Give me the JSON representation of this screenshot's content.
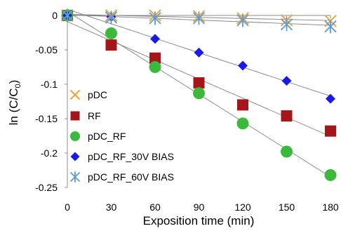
{
  "chart_data": {
    "type": "scatter",
    "title": "",
    "xlabel": "Exposition time (min)",
    "ylabel": {
      "main": "ln (C/C",
      "sub": "0",
      "close": ")"
    },
    "xlim": [
      0,
      180
    ],
    "ylim": [
      -0.25,
      0
    ],
    "x_ticks": [
      0,
      30,
      60,
      90,
      120,
      150,
      180
    ],
    "y_ticks": [
      0,
      -0.05,
      -0.1,
      -0.15,
      -0.2,
      -0.25
    ],
    "y_tick_labels": [
      "0",
      "-0.05",
      "-0.1",
      "-0.15",
      "-0.2",
      "-0.25"
    ],
    "grid": false,
    "trendlines": true,
    "legend_position": "bottom-left",
    "series": [
      {
        "name": "pDC",
        "marker": "x-cross",
        "color": "#F4A23A",
        "x": [
          0,
          30,
          60,
          90,
          120,
          150,
          180
        ],
        "y": [
          0,
          0,
          0,
          -0.001,
          -0.004,
          -0.007,
          -0.008
        ]
      },
      {
        "name": "RF",
        "marker": "square",
        "color": "#A5161B",
        "x": [
          0,
          30,
          60,
          90,
          120,
          150,
          180
        ],
        "y": [
          0,
          -0.043,
          -0.062,
          -0.098,
          -0.13,
          -0.146,
          -0.168
        ]
      },
      {
        "name": "pDC_RF",
        "marker": "circle",
        "color": "#3CB93C",
        "x": [
          0,
          30,
          60,
          90,
          120,
          150,
          180
        ],
        "y": [
          0,
          -0.026,
          -0.075,
          -0.113,
          -0.157,
          -0.198,
          -0.232
        ]
      },
      {
        "name": "pDC_RF_30V BIAS",
        "marker": "diamond",
        "color": "#1A1AE6",
        "x": [
          0,
          30,
          60,
          90,
          120,
          150,
          180
        ],
        "y": [
          0,
          -0.002,
          -0.034,
          -0.054,
          -0.073,
          -0.095,
          -0.121
        ]
      },
      {
        "name": "pDC_RF_60V BIAS",
        "marker": "asterisk",
        "color": "#5A9BD5",
        "x": [
          0,
          30,
          60,
          90,
          120,
          150,
          180
        ],
        "y": [
          0,
          -0.003,
          -0.004,
          -0.004,
          -0.007,
          -0.013,
          -0.016
        ]
      }
    ]
  }
}
